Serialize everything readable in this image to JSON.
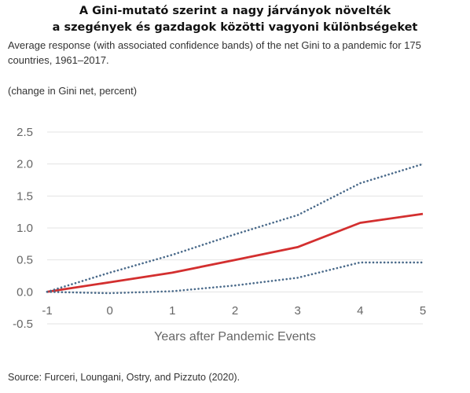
{
  "header": {
    "title_line1": "A Gini-mutató szerint a nagy járványok növelték",
    "title_line2": "a szegények és gazdagok közötti vagyoni különbségeket",
    "subtitle": "Average response (with associated confidence bands) of the net Gini to a pandemic for 175 countries, 1961–2017.",
    "unit": "(change in Gini net, percent)"
  },
  "source": "Source: Furceri, Loungani, Ostry, and Pizzuto (2020).",
  "chart_data": {
    "type": "line",
    "xlabel": "Years after Pandemic Events",
    "ylabel": "",
    "xlim": [
      -1,
      5
    ],
    "ylim": [
      -0.5,
      2.5
    ],
    "x_ticks": [
      -1,
      0,
      1,
      2,
      3,
      4,
      5
    ],
    "y_ticks": [
      -0.5,
      0.0,
      0.5,
      1.0,
      1.5,
      2.0,
      2.5
    ],
    "grid": "horizontal",
    "x": [
      -1,
      0,
      1,
      2,
      3,
      4,
      5
    ],
    "series": [
      {
        "role": "estimate",
        "style": "solid",
        "color": "#d32f2f",
        "values": [
          0.0,
          0.15,
          0.3,
          0.5,
          0.7,
          1.08,
          1.22
        ]
      },
      {
        "role": "upper-band",
        "style": "dotted",
        "color": "#4a6a8a",
        "values": [
          0.0,
          0.3,
          0.58,
          0.9,
          1.2,
          1.7,
          2.0
        ]
      },
      {
        "role": "lower-band",
        "style": "dotted",
        "color": "#4a6a8a",
        "values": [
          0.0,
          -0.02,
          0.01,
          0.1,
          0.22,
          0.46,
          0.46
        ]
      }
    ]
  }
}
